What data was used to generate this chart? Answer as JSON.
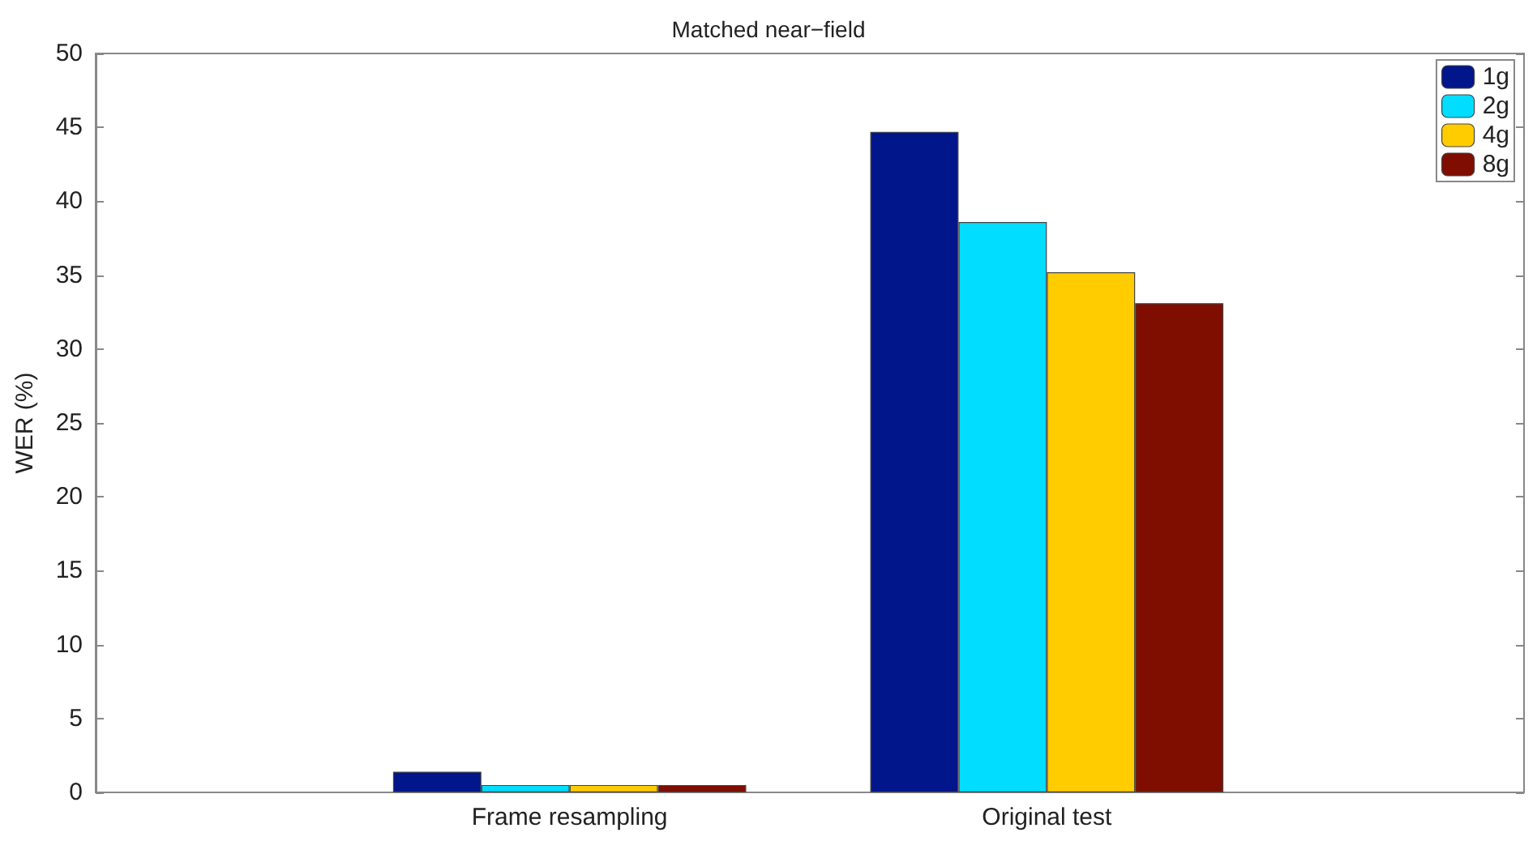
{
  "chart_data": {
    "type": "bar",
    "title": "Matched near−field",
    "ylabel": "WER (%)",
    "categories": [
      "Frame resampling",
      "Original test"
    ],
    "series": [
      {
        "name": "1g",
        "color": "#00168a",
        "values": [
          1.4,
          44.7
        ]
      },
      {
        "name": "2g",
        "color": "#00ddff",
        "values": [
          0.5,
          38.6
        ]
      },
      {
        "name": "4g",
        "color": "#ffcc00",
        "values": [
          0.5,
          35.2
        ]
      },
      {
        "name": "8g",
        "color": "#7f0d00",
        "values": [
          0.5,
          33.1
        ]
      }
    ],
    "ylim": [
      0,
      50
    ],
    "yticks": [
      0,
      5,
      10,
      15,
      20,
      25,
      30,
      35,
      40,
      45,
      50
    ],
    "grid": false,
    "legend": "top right"
  }
}
